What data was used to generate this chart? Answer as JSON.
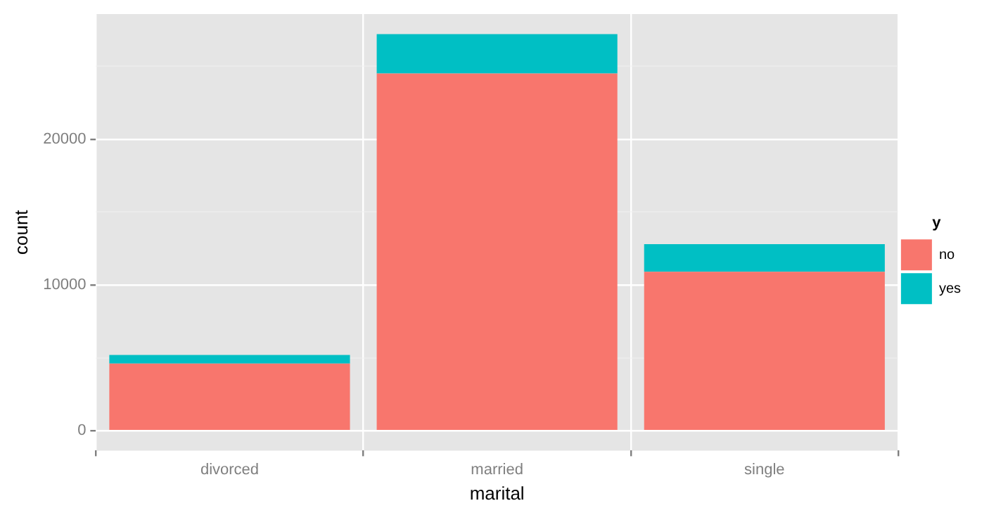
{
  "chart_data": {
    "type": "bar",
    "stacked": true,
    "xlabel": "marital",
    "ylabel": "count",
    "legend_title": "y",
    "legend": "right",
    "grid": true,
    "categories": [
      "divorced",
      "married",
      "single"
    ],
    "series": [
      {
        "name": "no",
        "color": "#f8766d",
        "values": [
          4600,
          24500,
          10900
        ]
      },
      {
        "name": "yes",
        "color": "#00bfc4",
        "values": [
          600,
          2700,
          1900
        ]
      }
    ],
    "ylim": [
      -1361,
      28575
    ],
    "yticks": [
      0,
      {
        "value": 5000,
        "label": null
      },
      10000,
      {
        "value": 15000,
        "label": null
      },
      20000,
      {
        "value": 25000,
        "label": null
      }
    ]
  }
}
